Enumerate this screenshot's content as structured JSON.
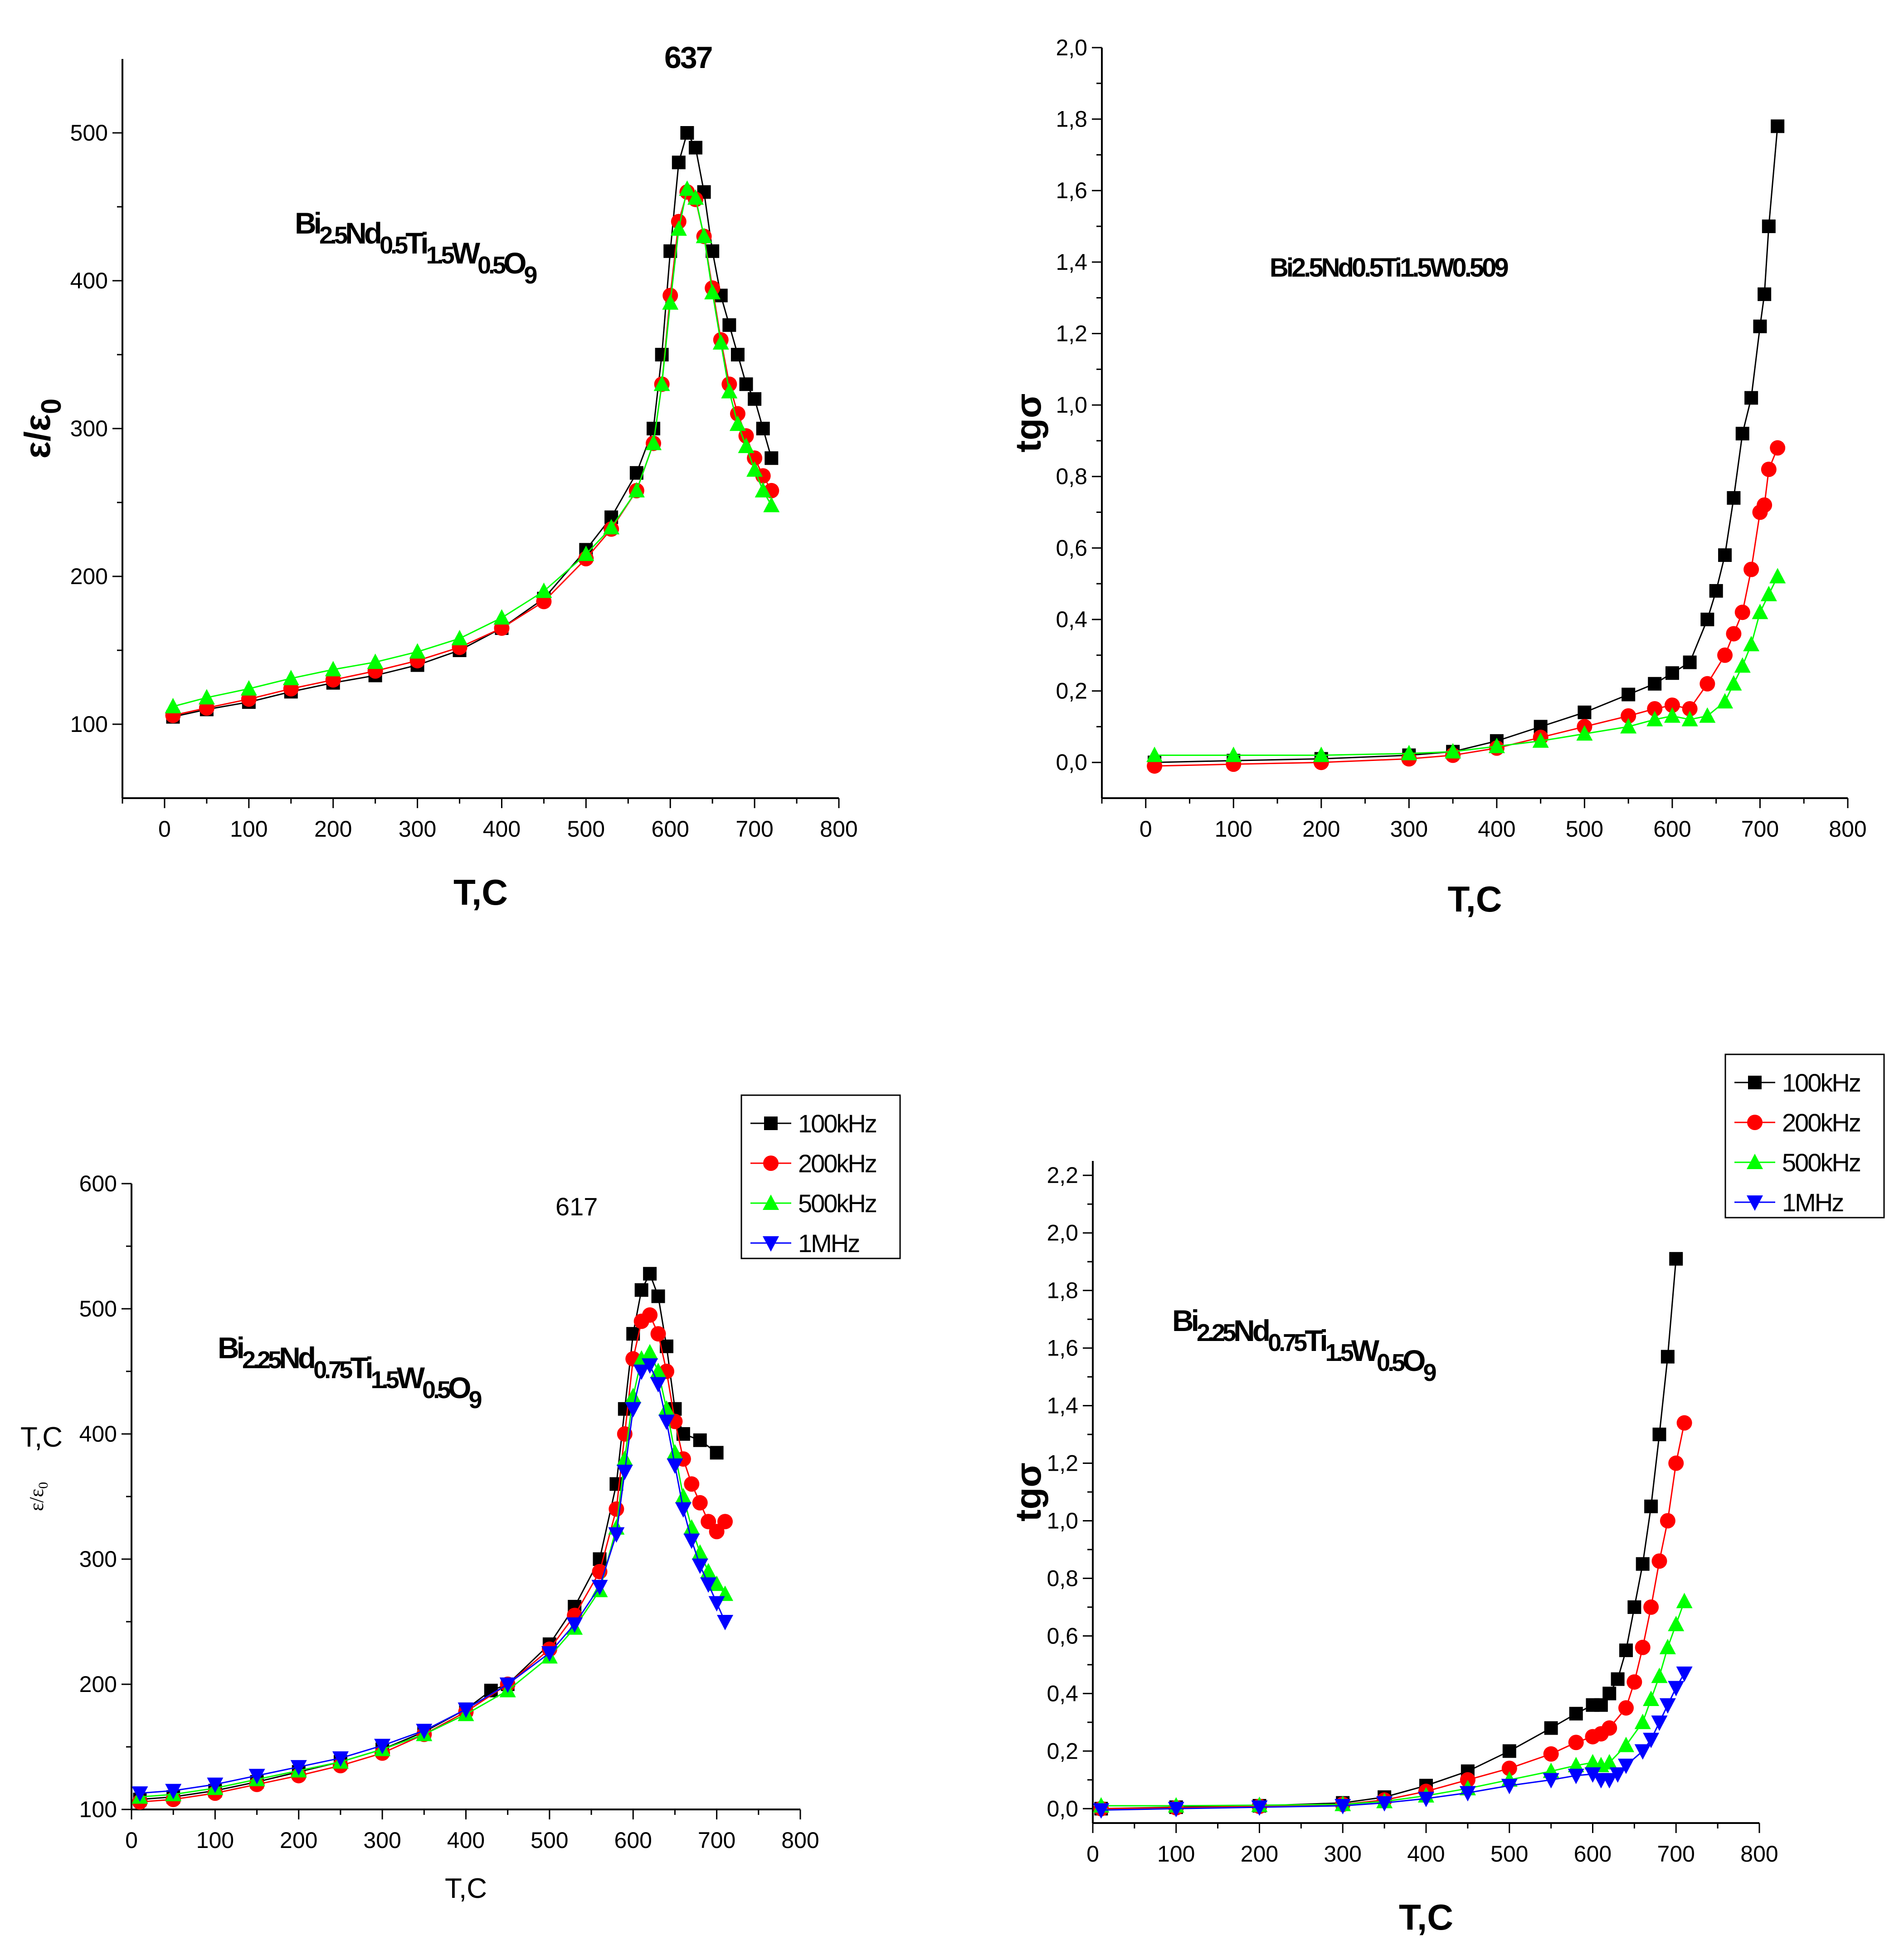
{
  "colors": {
    "100kHz": "#000000",
    "200kHz": "#ff0000",
    "500kHz": "#00ff00",
    "1MHz": "#0000ff"
  },
  "chart_data": [
    {
      "type": "scatter",
      "panel": "top-left",
      "xlabel": "T,C",
      "ylabel": "ε/ε0",
      "annotation": "637",
      "composition": {
        "parts": [
          [
            "Bi",
            "2.5"
          ],
          [
            "Nd",
            "0.5"
          ],
          [
            "Ti",
            "1.5"
          ],
          [
            "W",
            "0.5"
          ],
          [
            "O",
            "9"
          ]
        ]
      },
      "xlim": [
        -50,
        800
      ],
      "ylim": [
        50,
        550
      ],
      "xticks": [
        "0",
        "100",
        "200",
        "300",
        "400",
        "500",
        "600",
        "700",
        "800"
      ],
      "yticks": [
        "100",
        "200",
        "300",
        "400",
        "500"
      ],
      "xtick_values": [
        0,
        100,
        200,
        300,
        400,
        500,
        600,
        700,
        800
      ],
      "ytick_values": [
        100,
        200,
        300,
        400,
        500
      ],
      "series": [
        {
          "key": "100kHz",
          "marker": "square",
          "x": [
            10,
            50,
            100,
            150,
            200,
            250,
            300,
            350,
            400,
            450,
            500,
            530,
            560,
            580,
            590,
            600,
            610,
            620,
            630,
            640,
            650,
            660,
            670,
            680,
            690,
            700,
            710,
            720
          ],
          "y": [
            105,
            110,
            115,
            122,
            128,
            133,
            140,
            150,
            165,
            185,
            218,
            240,
            270,
            300,
            350,
            420,
            480,
            500,
            490,
            460,
            420,
            390,
            370,
            350,
            330,
            320,
            300,
            280
          ]
        },
        {
          "key": "200kHz",
          "marker": "circle",
          "x": [
            10,
            50,
            100,
            150,
            200,
            250,
            300,
            350,
            400,
            450,
            500,
            530,
            560,
            580,
            590,
            600,
            610,
            620,
            630,
            640,
            650,
            660,
            670,
            680,
            690,
            700,
            710,
            720
          ],
          "y": [
            106,
            111,
            117,
            124,
            130,
            136,
            143,
            152,
            165,
            183,
            212,
            232,
            258,
            290,
            330,
            390,
            440,
            460,
            455,
            430,
            395,
            360,
            330,
            310,
            295,
            280,
            268,
            258
          ]
        },
        {
          "key": "500kHz",
          "marker": "triangle-up",
          "x": [
            10,
            50,
            100,
            150,
            200,
            250,
            300,
            350,
            400,
            450,
            500,
            530,
            560,
            580,
            590,
            600,
            610,
            620,
            630,
            640,
            650,
            660,
            670,
            680,
            690,
            700,
            710,
            720
          ],
          "y": [
            112,
            118,
            124,
            131,
            137,
            142,
            149,
            158,
            172,
            190,
            215,
            233,
            258,
            290,
            330,
            385,
            435,
            462,
            456,
            430,
            392,
            358,
            325,
            303,
            288,
            272,
            258,
            248
          ]
        }
      ]
    },
    {
      "type": "scatter",
      "panel": "top-right",
      "xlabel": "T,C",
      "ylabel": "tgσ",
      "composition_text": "Bi2.5Nd0.5Ti1.5W0.509",
      "xlim": [
        -50,
        800
      ],
      "ylim": [
        -0.1,
        2.0
      ],
      "xticks": [
        "0",
        "100",
        "200",
        "300",
        "400",
        "500",
        "600",
        "700",
        "800"
      ],
      "yticks": [
        "0,0",
        "0,2",
        "0,4",
        "0,6",
        "0,8",
        "1,0",
        "1,2",
        "1,4",
        "1,6",
        "1,8",
        "2,0"
      ],
      "xtick_values": [
        0,
        100,
        200,
        300,
        400,
        500,
        600,
        700,
        800
      ],
      "ytick_values": [
        0,
        0.2,
        0.4,
        0.6,
        0.8,
        1.0,
        1.2,
        1.4,
        1.6,
        1.8,
        2.0
      ],
      "series": [
        {
          "key": "100kHz",
          "marker": "square",
          "x": [
            10,
            100,
            200,
            300,
            350,
            400,
            450,
            500,
            550,
            580,
            600,
            620,
            640,
            650,
            660,
            670,
            680,
            690,
            700,
            705,
            710,
            720
          ],
          "y": [
            0.0,
            0.005,
            0.01,
            0.02,
            0.03,
            0.06,
            0.1,
            0.14,
            0.19,
            0.22,
            0.25,
            0.28,
            0.4,
            0.48,
            0.58,
            0.74,
            0.92,
            1.02,
            1.22,
            1.31,
            1.5,
            1.78
          ]
        },
        {
          "key": "200kHz",
          "marker": "circle",
          "x": [
            10,
            100,
            200,
            300,
            350,
            400,
            450,
            500,
            550,
            580,
            600,
            620,
            640,
            660,
            670,
            680,
            690,
            700,
            705,
            710,
            720
          ],
          "y": [
            -0.01,
            -0.005,
            0.0,
            0.01,
            0.02,
            0.04,
            0.07,
            0.1,
            0.13,
            0.15,
            0.16,
            0.15,
            0.22,
            0.3,
            0.36,
            0.42,
            0.54,
            0.7,
            0.72,
            0.82,
            0.88
          ]
        },
        {
          "key": "500kHz",
          "marker": "triangle-up",
          "x": [
            10,
            100,
            200,
            300,
            350,
            400,
            450,
            500,
            550,
            580,
            600,
            620,
            640,
            660,
            670,
            680,
            690,
            700,
            710,
            720
          ],
          "y": [
            0.02,
            0.02,
            0.02,
            0.025,
            0.03,
            0.045,
            0.06,
            0.08,
            0.1,
            0.12,
            0.13,
            0.12,
            0.13,
            0.17,
            0.22,
            0.27,
            0.33,
            0.42,
            0.47,
            0.52
          ]
        }
      ]
    },
    {
      "type": "scatter",
      "panel": "bottom-left",
      "xlabel": "T,C",
      "ylabel": "ε/ε0",
      "ylabel_extra": "T,C",
      "annotation": "617",
      "composition": {
        "parts": [
          [
            "Bi",
            "2.25"
          ],
          [
            "Nd",
            "0.75"
          ],
          [
            "Ti",
            "1.5"
          ],
          [
            "W",
            "0.5"
          ],
          [
            "O",
            "9"
          ]
        ]
      },
      "legend": [
        "100kHz",
        "200kHz",
        "500kHz",
        "1MHz"
      ],
      "xlim": [
        0,
        800
      ],
      "ylim": [
        100,
        600
      ],
      "xticks": [
        "0",
        "100",
        "200",
        "300",
        "400",
        "500",
        "600",
        "700",
        "800"
      ],
      "yticks": [
        "100",
        "200",
        "300",
        "400",
        "500",
        "600"
      ],
      "xtick_values": [
        0,
        100,
        200,
        300,
        400,
        500,
        600,
        700,
        800
      ],
      "ytick_values": [
        100,
        200,
        300,
        400,
        500,
        600
      ],
      "series": [
        {
          "key": "100kHz",
          "marker": "square",
          "x": [
            10,
            50,
            100,
            150,
            200,
            250,
            300,
            350,
            400,
            430,
            450,
            500,
            530,
            560,
            580,
            590,
            600,
            610,
            620,
            630,
            640,
            650,
            660,
            680,
            700
          ],
          "y": [
            108,
            110,
            115,
            122,
            130,
            138,
            148,
            162,
            180,
            195,
            200,
            232,
            262,
            300,
            360,
            420,
            480,
            515,
            528,
            510,
            470,
            420,
            400,
            395,
            385
          ]
        },
        {
          "key": "200kHz",
          "marker": "circle",
          "x": [
            10,
            50,
            100,
            150,
            200,
            250,
            300,
            350,
            400,
            450,
            500,
            530,
            560,
            580,
            590,
            600,
            610,
            620,
            630,
            640,
            650,
            660,
            670,
            680,
            690,
            700,
            710
          ],
          "y": [
            106,
            108,
            113,
            120,
            127,
            135,
            145,
            160,
            178,
            200,
            228,
            255,
            290,
            340,
            400,
            460,
            490,
            495,
            480,
            450,
            410,
            380,
            360,
            345,
            330,
            322,
            330
          ]
        },
        {
          "key": "500kHz",
          "marker": "triangle-up",
          "x": [
            10,
            50,
            100,
            150,
            200,
            250,
            300,
            350,
            400,
            450,
            500,
            530,
            560,
            580,
            590,
            600,
            610,
            620,
            630,
            640,
            650,
            660,
            670,
            680,
            690,
            700,
            710
          ],
          "y": [
            110,
            112,
            117,
            124,
            131,
            138,
            148,
            160,
            176,
            195,
            222,
            245,
            275,
            325,
            380,
            430,
            460,
            465,
            450,
            420,
            385,
            350,
            325,
            305,
            290,
            280,
            272
          ]
        },
        {
          "key": "1MHz",
          "marker": "triangle-down",
          "x": [
            10,
            50,
            100,
            150,
            200,
            250,
            300,
            350,
            400,
            450,
            500,
            530,
            560,
            580,
            590,
            600,
            610,
            620,
            630,
            640,
            650,
            660,
            670,
            680,
            690,
            700,
            710
          ],
          "y": [
            113,
            115,
            120,
            127,
            134,
            141,
            151,
            163,
            180,
            200,
            225,
            248,
            278,
            320,
            370,
            420,
            450,
            455,
            440,
            410,
            375,
            340,
            315,
            295,
            280,
            265,
            250
          ]
        }
      ]
    },
    {
      "type": "scatter",
      "panel": "bottom-right",
      "xlabel": "T,C",
      "ylabel": "tgσ",
      "composition": {
        "parts": [
          [
            "Bi",
            "2.25"
          ],
          [
            "Nd",
            "0.75"
          ],
          [
            "Ti",
            "1.5"
          ],
          [
            "W",
            "0.5"
          ],
          [
            "O",
            "9"
          ]
        ]
      },
      "legend": [
        "100kHz",
        "200kHz",
        "500kHz",
        "1MHz"
      ],
      "xlim": [
        0,
        800
      ],
      "ylim": [
        -0.05,
        2.25
      ],
      "xticks": [
        "0",
        "100",
        "200",
        "300",
        "400",
        "500",
        "600",
        "700",
        "800"
      ],
      "yticks": [
        "0,0",
        "0,2",
        "0,4",
        "0,6",
        "0,8",
        "1,0",
        "1,2",
        "1,4",
        "1,6",
        "1,8",
        "2,0",
        "2,2"
      ],
      "xtick_values": [
        0,
        100,
        200,
        300,
        400,
        500,
        600,
        700,
        800
      ],
      "ytick_values": [
        0,
        0.2,
        0.4,
        0.6,
        0.8,
        1.0,
        1.2,
        1.4,
        1.6,
        1.8,
        2.0,
        2.2
      ],
      "series": [
        {
          "key": "100kHz",
          "marker": "square",
          "x": [
            10,
            100,
            200,
            300,
            350,
            400,
            450,
            500,
            550,
            580,
            600,
            610,
            620,
            630,
            640,
            650,
            660,
            670,
            680,
            690,
            700
          ],
          "y": [
            0.0,
            0.005,
            0.01,
            0.02,
            0.04,
            0.08,
            0.13,
            0.2,
            0.28,
            0.33,
            0.36,
            0.36,
            0.4,
            0.45,
            0.55,
            0.7,
            0.85,
            1.05,
            1.3,
            1.57,
            1.91
          ]
        },
        {
          "key": "200kHz",
          "marker": "circle",
          "x": [
            10,
            100,
            200,
            300,
            350,
            400,
            450,
            500,
            550,
            580,
            600,
            610,
            620,
            640,
            650,
            660,
            670,
            680,
            690,
            700,
            710
          ],
          "y": [
            0.0,
            0.003,
            0.008,
            0.015,
            0.03,
            0.06,
            0.1,
            0.14,
            0.19,
            0.23,
            0.25,
            0.26,
            0.28,
            0.35,
            0.44,
            0.56,
            0.7,
            0.86,
            1.0,
            1.2,
            1.34
          ]
        },
        {
          "key": "500kHz",
          "marker": "triangle-up",
          "x": [
            10,
            100,
            200,
            300,
            350,
            400,
            450,
            500,
            550,
            580,
            600,
            610,
            620,
            640,
            660,
            670,
            680,
            690,
            700,
            710
          ],
          "y": [
            0.01,
            0.01,
            0.012,
            0.015,
            0.025,
            0.045,
            0.07,
            0.1,
            0.13,
            0.15,
            0.16,
            0.15,
            0.16,
            0.22,
            0.3,
            0.38,
            0.46,
            0.56,
            0.64,
            0.72
          ]
        },
        {
          "key": "1MHz",
          "marker": "triangle-down",
          "x": [
            10,
            100,
            200,
            300,
            350,
            400,
            450,
            500,
            550,
            580,
            600,
            610,
            620,
            630,
            640,
            660,
            670,
            680,
            690,
            700,
            710
          ],
          "y": [
            -0.005,
            0.0,
            0.005,
            0.01,
            0.02,
            0.035,
            0.055,
            0.08,
            0.1,
            0.115,
            0.12,
            0.1,
            0.1,
            0.12,
            0.15,
            0.2,
            0.24,
            0.3,
            0.36,
            0.42,
            0.47
          ]
        }
      ]
    }
  ]
}
